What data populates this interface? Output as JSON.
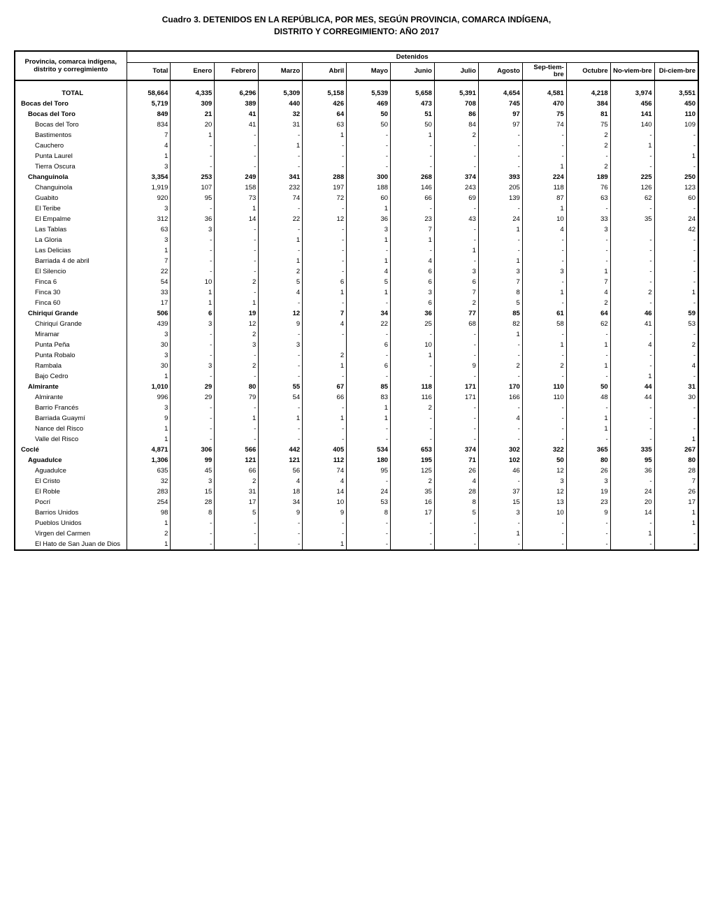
{
  "title_line1": "Cuadro 3.  DETENIDOS EN LA REPÚBLICA, POR MES, SEGÚN PROVINCIA, COMARCA INDÍGENA,",
  "title_line2": "DISTRITO Y CORREGIMIENTO: AÑO 2017",
  "header": {
    "row_label": "Provincia, comarca indígena, distrito y corregimiento",
    "super": "Detenidos",
    "cols": [
      "Total",
      "Enero",
      "Febrero",
      "Marzo",
      "Abril",
      "Mayo",
      "Junio",
      "Julio",
      "Agosto",
      "Sep-tiem-bre",
      "Octubre",
      "No-viem-bre",
      "Di-ciem-bre"
    ]
  },
  "rows": [
    {
      "type": "spacer"
    },
    {
      "label": "TOTAL",
      "indent": 0,
      "bold": true,
      "center": true,
      "vals": [
        "58,664",
        "4,335",
        "6,296",
        "5,309",
        "5,158",
        "5,539",
        "5,658",
        "5,391",
        "4,654",
        "4,581",
        "4,218",
        "3,974",
        "3,551"
      ]
    },
    {
      "label": "Bocas del Toro",
      "indent": 0,
      "bold": true,
      "vals": [
        "5,719",
        "309",
        "389",
        "440",
        "426",
        "469",
        "473",
        "708",
        "745",
        "470",
        "384",
        "456",
        "450"
      ]
    },
    {
      "label": "Bocas del Toro",
      "indent": 1,
      "bold": true,
      "vals": [
        "849",
        "21",
        "41",
        "32",
        "64",
        "50",
        "51",
        "86",
        "97",
        "75",
        "81",
        "141",
        "110"
      ]
    },
    {
      "label": "Bocas del Toro",
      "indent": 2,
      "vals": [
        "834",
        "20",
        "41",
        "31",
        "63",
        "50",
        "50",
        "84",
        "97",
        "74",
        "75",
        "140",
        "109"
      ]
    },
    {
      "label": "Bastimentos",
      "indent": 2,
      "vals": [
        "7",
        "1",
        "-",
        "-",
        "1",
        "-",
        "1",
        "2",
        "-",
        "-",
        "2",
        "-",
        "-"
      ]
    },
    {
      "label": "Cauchero",
      "indent": 2,
      "vals": [
        "4",
        "-",
        "-",
        "1",
        "-",
        "-",
        "-",
        "-",
        "-",
        "-",
        "2",
        "1",
        "-"
      ]
    },
    {
      "label": "Punta Laurel",
      "indent": 2,
      "vals": [
        "1",
        "-",
        "-",
        "-",
        "-",
        "-",
        "-",
        "-",
        "-",
        "-",
        "-",
        "-",
        "1"
      ]
    },
    {
      "label": "Tierra Oscura",
      "indent": 2,
      "vals": [
        "3",
        "-",
        "-",
        "-",
        "-",
        "-",
        "-",
        "-",
        "-",
        "1",
        "2",
        "-",
        "-"
      ]
    },
    {
      "label": "Changuinola",
      "indent": 1,
      "bold": true,
      "vals": [
        "3,354",
        "253",
        "249",
        "341",
        "288",
        "300",
        "268",
        "374",
        "393",
        "224",
        "189",
        "225",
        "250"
      ]
    },
    {
      "label": "Changuinola",
      "indent": 2,
      "vals": [
        "1,919",
        "107",
        "158",
        "232",
        "197",
        "188",
        "146",
        "243",
        "205",
        "118",
        "76",
        "126",
        "123"
      ]
    },
    {
      "label": "Guabito",
      "indent": 2,
      "vals": [
        "920",
        "95",
        "73",
        "74",
        "72",
        "60",
        "66",
        "69",
        "139",
        "87",
        "63",
        "62",
        "60"
      ]
    },
    {
      "label": "El Teribe",
      "indent": 2,
      "vals": [
        "3",
        "-",
        "1",
        "-",
        "-",
        "1",
        "-",
        "-",
        "-",
        "1",
        "-",
        "-",
        "-"
      ]
    },
    {
      "label": "El Empalme",
      "indent": 2,
      "vals": [
        "312",
        "36",
        "14",
        "22",
        "12",
        "36",
        "23",
        "43",
        "24",
        "10",
        "33",
        "35",
        "24"
      ]
    },
    {
      "label": "Las Tablas",
      "indent": 2,
      "vals": [
        "63",
        "3",
        "-",
        "-",
        "-",
        "3",
        "7",
        "-",
        "1",
        "4",
        "3",
        "",
        "42"
      ]
    },
    {
      "label": "La Gloria",
      "indent": 2,
      "vals": [
        "3",
        "-",
        "-",
        "1",
        "-",
        "1",
        "1",
        "-",
        "-",
        "-",
        "-",
        "-",
        "-"
      ]
    },
    {
      "label": "Las Delicias",
      "indent": 2,
      "vals": [
        "1",
        "-",
        "-",
        "-",
        "-",
        "-",
        "-",
        "1",
        "-",
        "-",
        "-",
        "-",
        "-"
      ]
    },
    {
      "label": "Barriada 4 de abril",
      "indent": 2,
      "vals": [
        "7",
        "-",
        "-",
        "1",
        "-",
        "1",
        "4",
        "-",
        "1",
        "-",
        "-",
        "-",
        "-"
      ]
    },
    {
      "label": "El Silencio",
      "indent": 2,
      "vals": [
        "22",
        "-",
        "-",
        "2",
        "-",
        "4",
        "6",
        "3",
        "3",
        "3",
        "1",
        "-",
        "-"
      ]
    },
    {
      "label": "Finca 6",
      "indent": 2,
      "vals": [
        "54",
        "10",
        "2",
        "5",
        "6",
        "5",
        "6",
        "6",
        "7",
        "-",
        "7",
        "-",
        "-"
      ]
    },
    {
      "label": "Finca 30",
      "indent": 2,
      "vals": [
        "33",
        "1",
        "-",
        "4",
        "1",
        "1",
        "3",
        "7",
        "8",
        "1",
        "4",
        "2",
        "1"
      ]
    },
    {
      "label": "Finca 60",
      "indent": 2,
      "vals": [
        "17",
        "1",
        "1",
        "-",
        "-",
        "-",
        "6",
        "2",
        "5",
        "-",
        "2",
        "-",
        "-"
      ]
    },
    {
      "label": "Chiriquí Grande",
      "indent": 1,
      "bold": true,
      "vals": [
        "506",
        "6",
        "19",
        "12",
        "7",
        "34",
        "36",
        "77",
        "85",
        "61",
        "64",
        "46",
        "59"
      ]
    },
    {
      "label": "Chiriquí Grande",
      "indent": 2,
      "vals": [
        "439",
        "3",
        "12",
        "9",
        "4",
        "22",
        "25",
        "68",
        "82",
        "58",
        "62",
        "41",
        "53"
      ]
    },
    {
      "label": "Miramar",
      "indent": 2,
      "vals": [
        "3",
        "-",
        "2",
        "-",
        "-",
        "-",
        "-",
        "-",
        "1",
        "-",
        "-",
        "-",
        "-"
      ]
    },
    {
      "label": "Punta Peña",
      "indent": 2,
      "vals": [
        "30",
        "-",
        "3",
        "3",
        "",
        "6",
        "10",
        "-",
        "-",
        "1",
        "1",
        "4",
        "2"
      ]
    },
    {
      "label": "Punta Robalo",
      "indent": 2,
      "vals": [
        "3",
        "-",
        "-",
        "-",
        "2",
        "-",
        "1",
        "-",
        "-",
        "-",
        "-",
        "-",
        "-"
      ]
    },
    {
      "label": "Rambala",
      "indent": 2,
      "vals": [
        "30",
        "3",
        "2",
        "-",
        "1",
        "6",
        "-",
        "9",
        "2",
        "2",
        "1",
        "-",
        "4"
      ]
    },
    {
      "label": "Bajo Cedro",
      "indent": 2,
      "vals": [
        "1",
        "-",
        "-",
        "-",
        "-",
        "-",
        "-",
        "-",
        "-",
        "-",
        "-",
        "1",
        "-"
      ]
    },
    {
      "label": "Almirante",
      "indent": 1,
      "bold": true,
      "vals": [
        "1,010",
        "29",
        "80",
        "55",
        "67",
        "85",
        "118",
        "171",
        "170",
        "110",
        "50",
        "44",
        "31"
      ]
    },
    {
      "label": "Almirante",
      "indent": 2,
      "vals": [
        "996",
        "29",
        "79",
        "54",
        "66",
        "83",
        "116",
        "171",
        "166",
        "110",
        "48",
        "44",
        "30"
      ]
    },
    {
      "label": "Barrio Francés",
      "indent": 2,
      "vals": [
        "3",
        "-",
        "-",
        "-",
        "-",
        "1",
        "2",
        "-",
        "-",
        "-",
        "-",
        "-",
        "-"
      ]
    },
    {
      "label": "Barriada Guaymí",
      "indent": 2,
      "vals": [
        "9",
        "-",
        "1",
        "1",
        "1",
        "1",
        "-",
        "-",
        "4",
        "-",
        "1",
        "-",
        "-"
      ]
    },
    {
      "label": "Nance del Risco",
      "indent": 2,
      "vals": [
        "1",
        "-",
        "-",
        "-",
        "-",
        "-",
        "-",
        "-",
        "-",
        "-",
        "1",
        "-",
        "-"
      ]
    },
    {
      "label": "Valle del Risco",
      "indent": 2,
      "vals": [
        "1",
        "-",
        "-",
        "-",
        "-",
        "-",
        "-",
        "-",
        "-",
        "-",
        "-",
        "-",
        "1"
      ]
    },
    {
      "label": "Coclé",
      "indent": 0,
      "bold": true,
      "vals": [
        "4,871",
        "306",
        "566",
        "442",
        "405",
        "534",
        "653",
        "374",
        "302",
        "322",
        "365",
        "335",
        "267"
      ]
    },
    {
      "label": "Aguadulce",
      "indent": 1,
      "bold": true,
      "vals": [
        "1,306",
        "99",
        "121",
        "121",
        "112",
        "180",
        "195",
        "71",
        "102",
        "50",
        "80",
        "95",
        "80"
      ]
    },
    {
      "label": "Aguadulce",
      "indent": 2,
      "vals": [
        "635",
        "45",
        "66",
        "56",
        "74",
        "95",
        "125",
        "26",
        "46",
        "12",
        "26",
        "36",
        "28"
      ]
    },
    {
      "label": "El Cristo",
      "indent": 2,
      "vals": [
        "32",
        "3",
        "2",
        "4",
        "4",
        "-",
        "2",
        "4",
        "-",
        "3",
        "3",
        "-",
        "7"
      ]
    },
    {
      "label": "El Roble",
      "indent": 2,
      "vals": [
        "283",
        "15",
        "31",
        "18",
        "14",
        "24",
        "35",
        "28",
        "37",
        "12",
        "19",
        "24",
        "26"
      ]
    },
    {
      "label": "Pocrí",
      "indent": 2,
      "vals": [
        "254",
        "28",
        "17",
        "34",
        "10",
        "53",
        "16",
        "8",
        "15",
        "13",
        "23",
        "20",
        "17"
      ]
    },
    {
      "label": "Barrios Unidos",
      "indent": 2,
      "vals": [
        "98",
        "8",
        "5",
        "9",
        "9",
        "8",
        "17",
        "5",
        "3",
        "10",
        "9",
        "14",
        "1"
      ]
    },
    {
      "label": "Pueblos Unidos",
      "indent": 2,
      "vals": [
        "1",
        "-",
        "-",
        "-",
        "-",
        "-",
        "-",
        "-",
        "-",
        "-",
        "-",
        "-",
        "1"
      ]
    },
    {
      "label": "Virgen del Carmen",
      "indent": 2,
      "vals": [
        "2",
        "-",
        "-",
        "-",
        "-",
        "-",
        "-",
        "-",
        "1",
        "-",
        "-",
        "1",
        "-"
      ]
    },
    {
      "label": "El Hato de San Juan de Dios",
      "indent": 2,
      "vals": [
        "1",
        "-",
        "-",
        "-",
        "1",
        "-",
        "-",
        "-",
        "-",
        "-",
        "-",
        "-",
        "-"
      ]
    }
  ]
}
